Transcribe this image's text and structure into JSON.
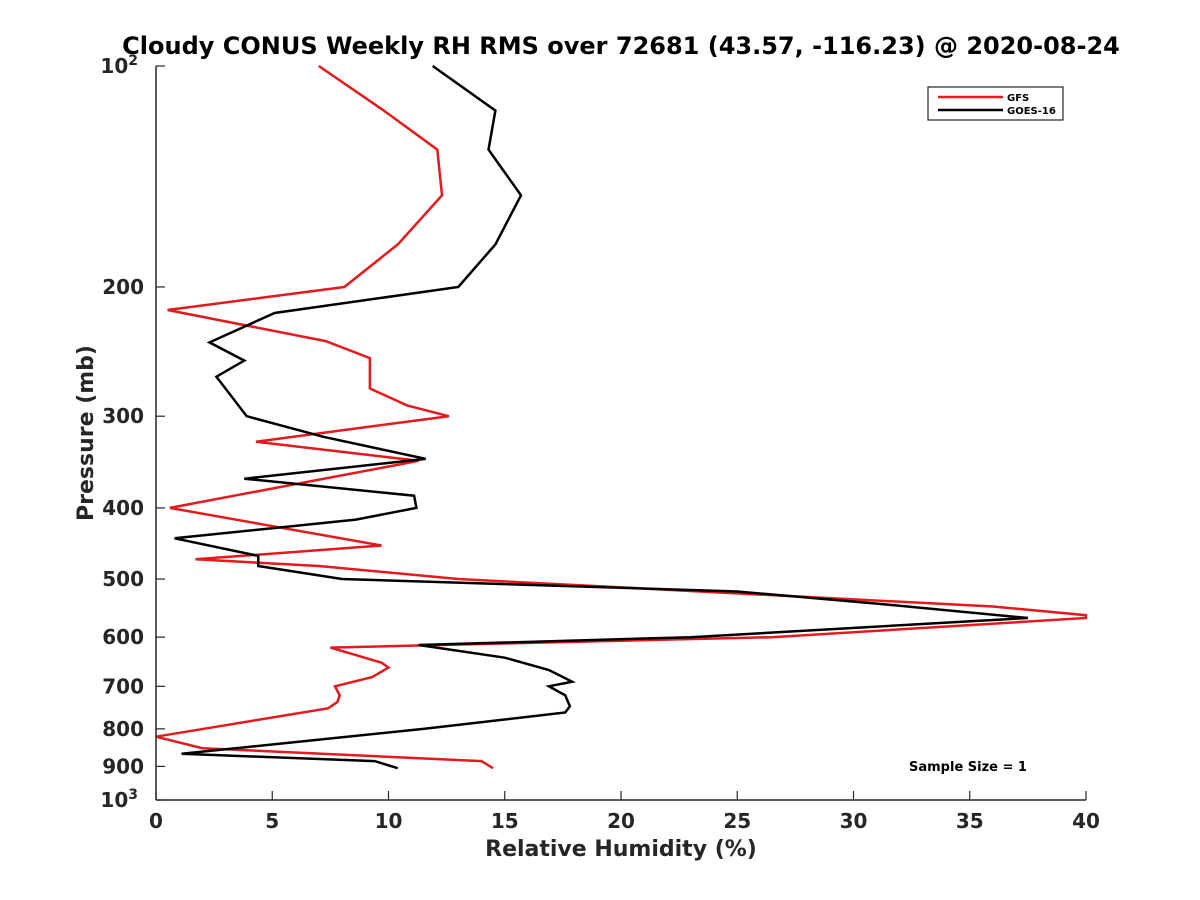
{
  "chart_data": {
    "type": "line",
    "title": "Cloudy CONUS Weekly RH RMS over 72681 (43.57, -116.23) @ 2020-08-24",
    "xlabel": "Relative Humidity (%)",
    "ylabel": "Pressure (mb)",
    "xlim": [
      0,
      40
    ],
    "ylim": [
      100,
      1000
    ],
    "y_scale": "log",
    "y_reversed": true,
    "xticks": [
      "0",
      "5",
      "10",
      "15",
      "20",
      "25",
      "30",
      "35",
      "40"
    ],
    "yticks": [
      {
        "value": 100,
        "base": "10",
        "exp": "2"
      },
      {
        "value": 200,
        "base": "200",
        "exp": ""
      },
      {
        "value": 300,
        "base": "300",
        "exp": ""
      },
      {
        "value": 400,
        "base": "400",
        "exp": ""
      },
      {
        "value": 500,
        "base": "500",
        "exp": ""
      },
      {
        "value": 600,
        "base": "600",
        "exp": ""
      },
      {
        "value": 700,
        "base": "700",
        "exp": ""
      },
      {
        "value": 800,
        "base": "800",
        "exp": ""
      },
      {
        "value": 900,
        "base": "900",
        "exp": ""
      },
      {
        "value": 1000,
        "base": "10",
        "exp": "3"
      }
    ],
    "grid": false,
    "legend_position": "top-right",
    "annotation": "Sample Size = 1",
    "series": [
      {
        "name": "GFS",
        "color": "#e41a1c",
        "points": [
          {
            "x": 7.0,
            "y": 100
          },
          {
            "x": 9.8,
            "y": 115
          },
          {
            "x": 12.1,
            "y": 130
          },
          {
            "x": 12.3,
            "y": 150
          },
          {
            "x": 10.4,
            "y": 175
          },
          {
            "x": 8.1,
            "y": 200
          },
          {
            "x": 0.5,
            "y": 215
          },
          {
            "x": 7.3,
            "y": 237
          },
          {
            "x": 9.2,
            "y": 250
          },
          {
            "x": 9.2,
            "y": 275
          },
          {
            "x": 10.8,
            "y": 290
          },
          {
            "x": 12.6,
            "y": 300
          },
          {
            "x": 4.3,
            "y": 325
          },
          {
            "x": 11.3,
            "y": 345
          },
          {
            "x": 4.3,
            "y": 380
          },
          {
            "x": 0.6,
            "y": 400
          },
          {
            "x": 9.7,
            "y": 450
          },
          {
            "x": 1.7,
            "y": 470
          },
          {
            "x": 7.0,
            "y": 480
          },
          {
            "x": 13.0,
            "y": 500
          },
          {
            "x": 26.0,
            "y": 525
          },
          {
            "x": 36.0,
            "y": 545
          },
          {
            "x": 40.0,
            "y": 560
          },
          {
            "x": 40.0,
            "y": 565
          },
          {
            "x": 26.5,
            "y": 600
          },
          {
            "x": 7.5,
            "y": 620
          },
          {
            "x": 9.7,
            "y": 650
          },
          {
            "x": 10.0,
            "y": 660
          },
          {
            "x": 9.3,
            "y": 680
          },
          {
            "x": 7.7,
            "y": 700
          },
          {
            "x": 7.9,
            "y": 720
          },
          {
            "x": 7.8,
            "y": 735
          },
          {
            "x": 7.4,
            "y": 750
          },
          {
            "x": 0.0,
            "y": 820
          },
          {
            "x": 2.0,
            "y": 850
          },
          {
            "x": 14.0,
            "y": 885
          },
          {
            "x": 14.5,
            "y": 905
          }
        ]
      },
      {
        "name": "GOES-16",
        "color": "#000000",
        "points": [
          {
            "x": 11.9,
            "y": 100
          },
          {
            "x": 14.6,
            "y": 115
          },
          {
            "x": 14.3,
            "y": 130
          },
          {
            "x": 15.7,
            "y": 150
          },
          {
            "x": 14.6,
            "y": 175
          },
          {
            "x": 13.0,
            "y": 200
          },
          {
            "x": 5.1,
            "y": 217
          },
          {
            "x": 2.3,
            "y": 238
          },
          {
            "x": 3.8,
            "y": 252
          },
          {
            "x": 2.6,
            "y": 265
          },
          {
            "x": 3.9,
            "y": 300
          },
          {
            "x": 7.2,
            "y": 320
          },
          {
            "x": 11.6,
            "y": 343
          },
          {
            "x": 3.8,
            "y": 365
          },
          {
            "x": 11.1,
            "y": 385
          },
          {
            "x": 11.2,
            "y": 400
          },
          {
            "x": 8.6,
            "y": 415
          },
          {
            "x": 0.8,
            "y": 440
          },
          {
            "x": 4.4,
            "y": 465
          },
          {
            "x": 4.4,
            "y": 480
          },
          {
            "x": 8.0,
            "y": 500
          },
          {
            "x": 25.0,
            "y": 520
          },
          {
            "x": 31.0,
            "y": 540
          },
          {
            "x": 37.5,
            "y": 565
          },
          {
            "x": 23.0,
            "y": 600
          },
          {
            "x": 11.3,
            "y": 615
          },
          {
            "x": 15.0,
            "y": 640
          },
          {
            "x": 16.9,
            "y": 665
          },
          {
            "x": 17.9,
            "y": 690
          },
          {
            "x": 16.9,
            "y": 700
          },
          {
            "x": 17.6,
            "y": 720
          },
          {
            "x": 17.8,
            "y": 745
          },
          {
            "x": 17.6,
            "y": 760
          },
          {
            "x": 11.5,
            "y": 800
          },
          {
            "x": 1.1,
            "y": 865
          },
          {
            "x": 9.4,
            "y": 885
          },
          {
            "x": 10.4,
            "y": 905
          }
        ]
      }
    ]
  }
}
